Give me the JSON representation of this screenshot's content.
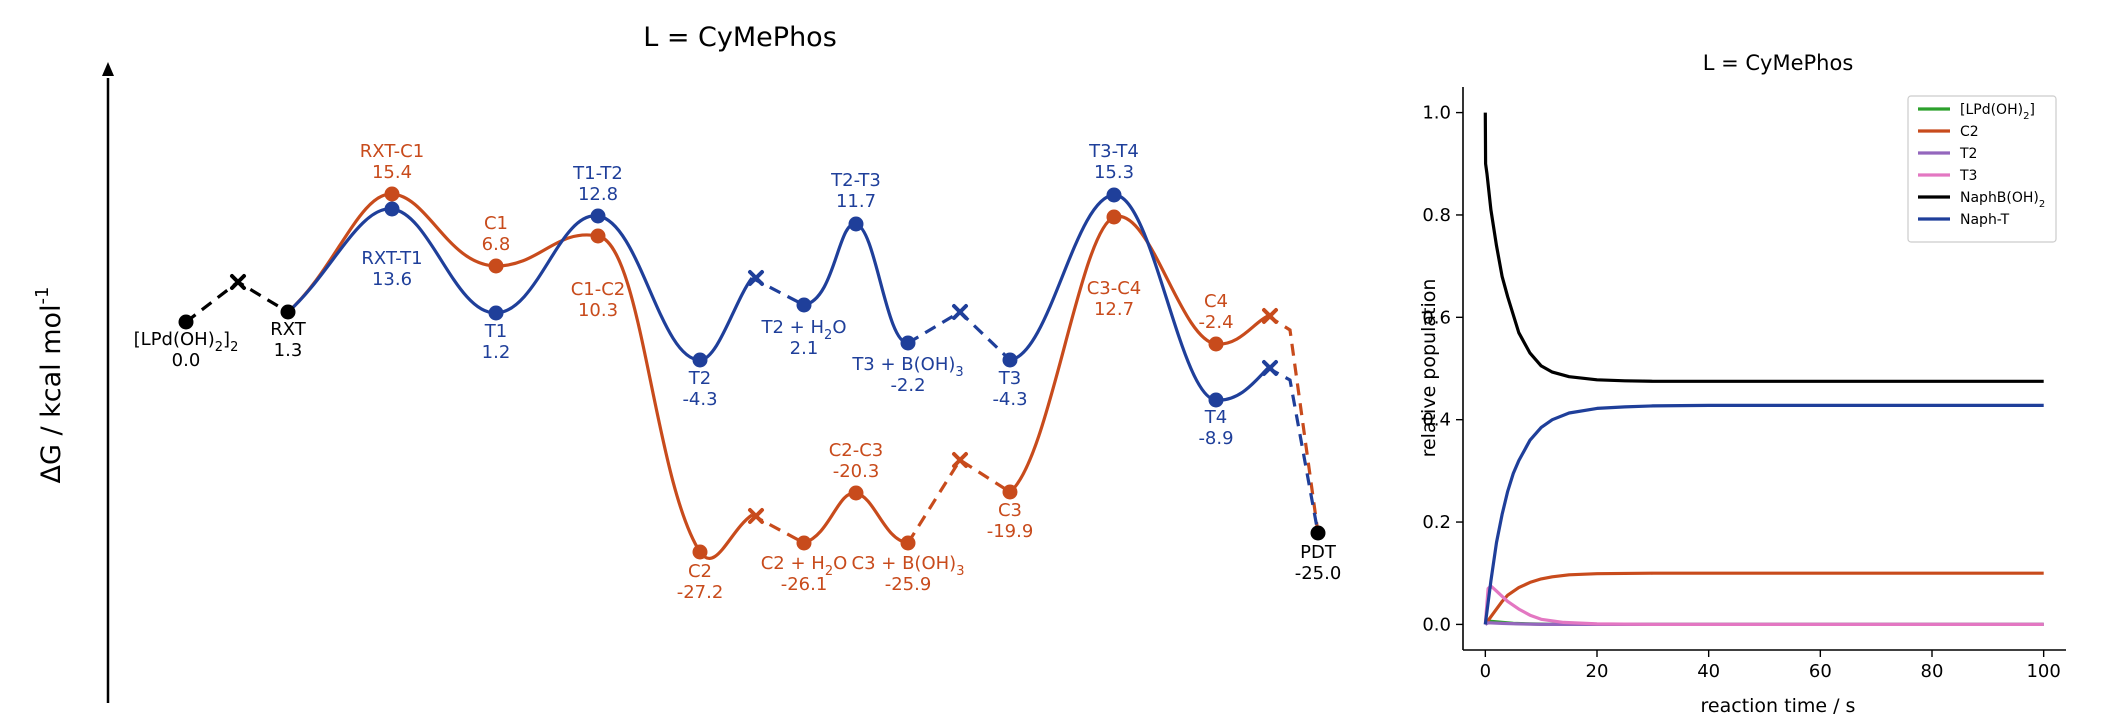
{
  "figure": {
    "colors": {
      "black": "#000000",
      "orange": "#c84b1c",
      "blue": "#1f3f9a",
      "green": "#2ca02c",
      "purple": "#9467bd",
      "pink": "#e377c2"
    }
  },
  "chart_data": [
    {
      "type": "line",
      "title": "L = CyMePhos",
      "ylabel": "ΔG / kcal mol",
      "ylabel_sup": "-1",
      "stationary_points": [
        {
          "id": "LPd",
          "label": "[LPd(OH)",
          "label_sub": "2",
          "label_tail": "]",
          "label_sub2": "2",
          "value": "0.0",
          "energy": 0.0,
          "series": "common",
          "kind": "min"
        },
        {
          "id": "RXT",
          "label": "RXT",
          "value": "1.3",
          "energy": 1.3,
          "series": "common",
          "kind": "min"
        },
        {
          "id": "RXT-C1",
          "label": "RXT-C1",
          "value": "15.4",
          "energy": 15.4,
          "series": "orange",
          "kind": "ts"
        },
        {
          "id": "RXT-T1",
          "label": "RXT-T1",
          "value": "13.6",
          "energy": 13.6,
          "series": "blue",
          "kind": "ts"
        },
        {
          "id": "C1",
          "label": "C1",
          "value": "6.8",
          "energy": 6.8,
          "series": "orange",
          "kind": "min"
        },
        {
          "id": "T1",
          "label": "T1",
          "value": "1.2",
          "energy": 1.2,
          "series": "blue",
          "kind": "min"
        },
        {
          "id": "T1-T2",
          "label": "T1-T2",
          "value": "12.8",
          "energy": 12.8,
          "series": "blue",
          "kind": "ts"
        },
        {
          "id": "C1-C2",
          "label": "C1-C2",
          "value": "10.3",
          "energy": 10.3,
          "series": "orange",
          "kind": "ts"
        },
        {
          "id": "T2",
          "label": "T2",
          "value": "-4.3",
          "energy": -4.3,
          "series": "blue",
          "kind": "min"
        },
        {
          "id": "T2H2O",
          "label": "T2 + H",
          "label_sub": "2",
          "label_tail": "O",
          "value": "2.1",
          "energy": 2.1,
          "series": "blue",
          "kind": "min"
        },
        {
          "id": "T2-T3",
          "label": "T2-T3",
          "value": "11.7",
          "energy": 11.7,
          "series": "blue",
          "kind": "ts"
        },
        {
          "id": "T3BOH3",
          "label": "T3 + B(OH)",
          "label_sub": "3",
          "value": "-2.2",
          "energy": -2.2,
          "series": "blue",
          "kind": "min"
        },
        {
          "id": "T3",
          "label": "T3",
          "value": "-4.3",
          "energy": -4.3,
          "series": "blue",
          "kind": "min"
        },
        {
          "id": "T3-T4",
          "label": "T3-T4",
          "value": "15.3",
          "energy": 15.3,
          "series": "blue",
          "kind": "ts"
        },
        {
          "id": "C3-C4",
          "label": "C3-C4",
          "value": "12.7",
          "energy": 12.7,
          "series": "orange",
          "kind": "ts"
        },
        {
          "id": "C4",
          "label": "C4",
          "value": "-2.4",
          "energy": -2.4,
          "series": "orange",
          "kind": "min"
        },
        {
          "id": "T4",
          "label": "T4",
          "value": "-8.9",
          "energy": -8.9,
          "series": "blue",
          "kind": "min"
        },
        {
          "id": "C2",
          "label": "C2",
          "value": "-27.2",
          "energy": -27.2,
          "series": "orange",
          "kind": "min"
        },
        {
          "id": "C2H2O",
          "label": "C2 + H",
          "label_sub": "2",
          "label_tail": "O",
          "value": "-26.1",
          "energy": -26.1,
          "series": "orange",
          "kind": "min"
        },
        {
          "id": "C2-C3",
          "label": "C2-C3",
          "value": "-20.3",
          "energy": -20.3,
          "series": "orange",
          "kind": "ts"
        },
        {
          "id": "C3BOH3",
          "label": "C3 + B(OH)",
          "label_sub": "3",
          "value": "-25.9",
          "energy": -25.9,
          "series": "orange",
          "kind": "min"
        },
        {
          "id": "C3",
          "label": "C3",
          "value": "-19.9",
          "energy": -19.9,
          "series": "orange",
          "kind": "min"
        },
        {
          "id": "PDT",
          "label": "PDT",
          "value": "-25.0",
          "energy": -25.0,
          "series": "common",
          "kind": "min"
        }
      ]
    },
    {
      "type": "line",
      "title": "L = CyMePhos",
      "xlabel": "reaction time / s",
      "ylabel": "relative population",
      "xlim": [
        -4,
        104
      ],
      "ylim": [
        -0.05,
        1.05
      ],
      "xticks": [
        0,
        20,
        40,
        60,
        80,
        100
      ],
      "xtick_labels": [
        "0",
        "20",
        "40",
        "60",
        "80",
        "100"
      ],
      "yticks": [
        0.0,
        0.2,
        0.4,
        0.6,
        0.8,
        1.0
      ],
      "ytick_labels": [
        "0.0",
        "0.2",
        "0.4",
        "0.6",
        "0.8",
        "1.0"
      ],
      "grid": false,
      "legend_position": "top-right",
      "series": [
        {
          "name": "[LPd(OH)",
          "name_sub": "2",
          "name_tail": "]",
          "color": "#2ca02c",
          "x": [
            0,
            0.5,
            1,
            2,
            3,
            5,
            8,
            12,
            20,
            100
          ],
          "y": [
            0,
            0.006,
            0.006,
            0.005,
            0.004,
            0.002,
            0.001,
            0,
            0,
            0
          ]
        },
        {
          "name": "C2",
          "color": "#c84b1c",
          "x": [
            0,
            1,
            2,
            3,
            4,
            6,
            8,
            10,
            12,
            15,
            20,
            30,
            50,
            100
          ],
          "y": [
            0,
            0.015,
            0.03,
            0.045,
            0.057,
            0.072,
            0.082,
            0.089,
            0.093,
            0.097,
            0.099,
            0.1,
            0.1,
            0.1
          ]
        },
        {
          "name": "T2",
          "color": "#9467bd",
          "x": [
            0,
            0.5,
            1,
            3,
            6,
            10,
            20,
            100
          ],
          "y": [
            0,
            0.003,
            0.003,
            0.002,
            0.001,
            0,
            0,
            0
          ]
        },
        {
          "name": "T3",
          "color": "#e377c2",
          "x": [
            0,
            0.5,
            1,
            2,
            3,
            4,
            6,
            8,
            10,
            14,
            20,
            30,
            100
          ],
          "y": [
            0,
            0.07,
            0.075,
            0.065,
            0.055,
            0.045,
            0.03,
            0.018,
            0.01,
            0.004,
            0.001,
            0,
            0
          ]
        },
        {
          "name": "NaphB(OH)",
          "name_sub": "2",
          "color": "#000000",
          "x": [
            0,
            0.05,
            0.3,
            1,
            2,
            3,
            4,
            6,
            8,
            10,
            12,
            15,
            20,
            25,
            30,
            40,
            60,
            100
          ],
          "y": [
            1.0,
            0.9,
            0.88,
            0.81,
            0.74,
            0.68,
            0.64,
            0.57,
            0.53,
            0.505,
            0.493,
            0.484,
            0.478,
            0.476,
            0.475,
            0.475,
            0.475,
            0.475
          ]
        },
        {
          "name": "Naph-T",
          "color": "#1f3f9a",
          "x": [
            0,
            1,
            2,
            3,
            4,
            5,
            6,
            8,
            10,
            12,
            15,
            20,
            25,
            30,
            40,
            60,
            100
          ],
          "y": [
            0,
            0.085,
            0.16,
            0.215,
            0.26,
            0.295,
            0.32,
            0.36,
            0.385,
            0.4,
            0.413,
            0.422,
            0.425,
            0.427,
            0.428,
            0.428,
            0.428
          ]
        }
      ]
    }
  ]
}
